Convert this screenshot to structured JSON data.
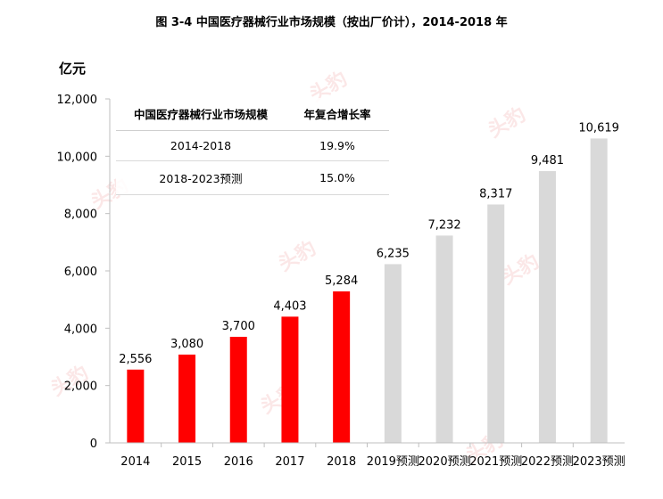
{
  "chart_data": {
    "type": "bar",
    "title": "图 3-4 中国医疗器械行业市场规模（按出厂价计），2014-2018 年",
    "ylabel": "亿元",
    "xlabel": "",
    "ylim": [
      0,
      12000
    ],
    "yticks": [
      0,
      2000,
      4000,
      6000,
      8000,
      10000,
      12000
    ],
    "ytick_labels": [
      "0",
      "2,000",
      "4,000",
      "6,000",
      "8,000",
      "10,000",
      "12,000"
    ],
    "grid": false,
    "categories": [
      "2014",
      "2015",
      "2016",
      "2017",
      "2018",
      "2019预测",
      "2020预测",
      "2021预测",
      "2022预测",
      "2023预测"
    ],
    "values": [
      2556,
      3080,
      3700,
      4403,
      5284,
      6235,
      7232,
      8317,
      9481,
      10619
    ],
    "value_labels": [
      "2,556",
      "3,080",
      "3,700",
      "4,403",
      "5,284",
      "6,235",
      "7,232",
      "8,317",
      "9,481",
      "10,619"
    ],
    "bar_colors": [
      "#ff0000",
      "#ff0000",
      "#ff0000",
      "#ff0000",
      "#ff0000",
      "#d9d9d9",
      "#d9d9d9",
      "#d9d9d9",
      "#d9d9d9",
      "#d9d9d9"
    ],
    "axis_color": "#bfbfbf",
    "inset_table": {
      "headers": [
        "中国医疗器械行业市场规模",
        "年复合增长率"
      ],
      "rows": [
        [
          "2014-2018",
          "19.9%"
        ],
        [
          "2018-2023预测",
          "15.0%"
        ]
      ]
    }
  },
  "watermark": "头豹"
}
